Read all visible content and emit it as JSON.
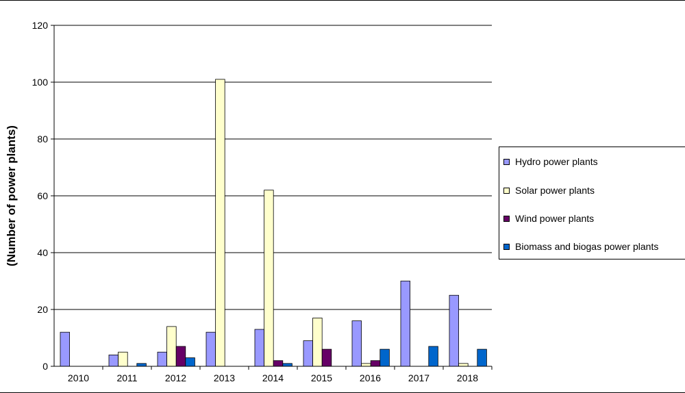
{
  "chart_data": {
    "type": "bar",
    "categories": [
      "2010",
      "2011",
      "2012",
      "2013",
      "2014",
      "2015",
      "2016",
      "2017",
      "2018"
    ],
    "series": [
      {
        "name": "Hydro power plants",
        "color": "#9999ff",
        "values": [
          12,
          4,
          5,
          12,
          13,
          9,
          16,
          30,
          25
        ]
      },
      {
        "name": "Solar power plants",
        "color": "#ffffcc",
        "values": [
          0,
          5,
          14,
          101,
          62,
          17,
          1,
          0,
          1
        ]
      },
      {
        "name": "Wind power plants",
        "color": "#660066",
        "values": [
          0,
          0,
          7,
          0,
          2,
          6,
          2,
          0,
          0
        ]
      },
      {
        "name": "Biomass and biogas power plants",
        "color": "#0066cc",
        "values": [
          0,
          1,
          3,
          0,
          1,
          0,
          6,
          7,
          6
        ]
      }
    ],
    "title": "",
    "xlabel": "",
    "ylabel": "(Number of power plants)",
    "ylim": [
      0,
      120
    ],
    "yticks": [
      "0",
      "20",
      "40",
      "60",
      "80",
      "100",
      "120"
    ],
    "grid": true,
    "legend": "right"
  }
}
